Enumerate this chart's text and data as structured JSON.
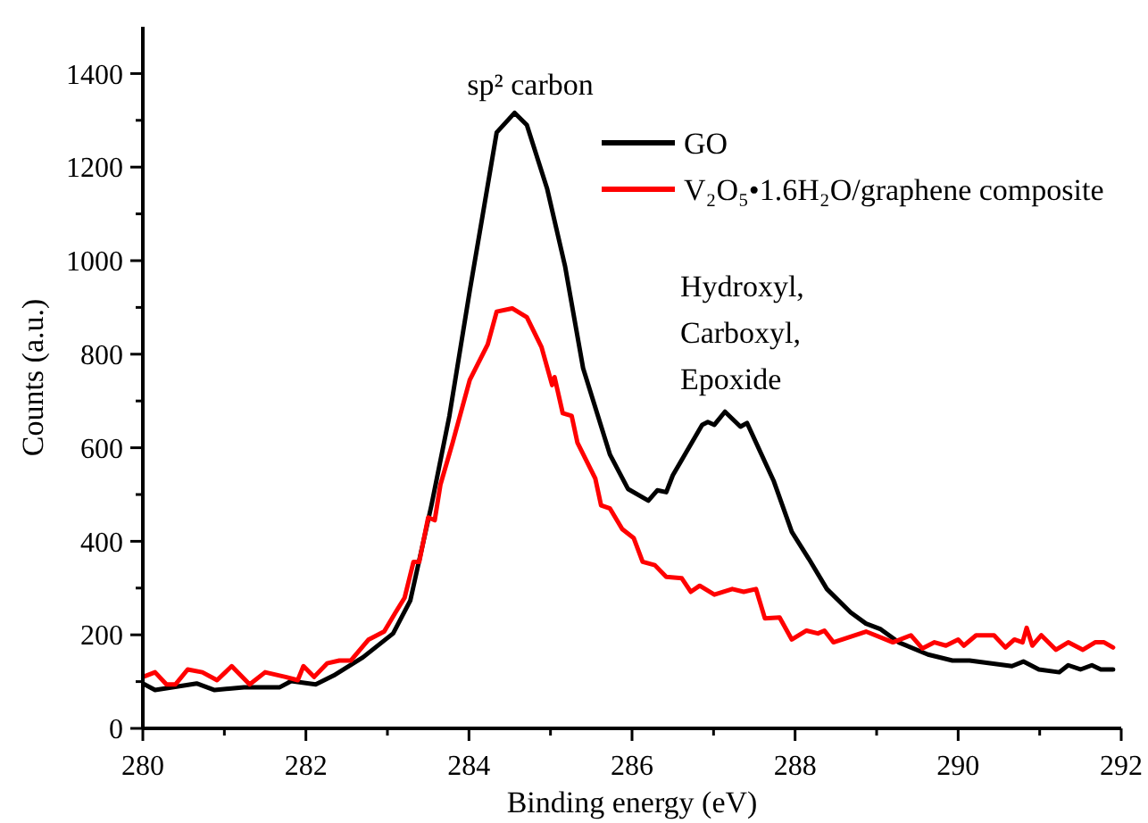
{
  "chart_data": {
    "type": "line",
    "xlabel": "Binding energy (eV)",
    "ylabel": "Counts (a.u.)",
    "xlim": [
      280,
      292
    ],
    "xticks": [
      280,
      {
        "value": 281,
        "label": null
      },
      282,
      {
        "value": 283,
        "label": null
      },
      284,
      {
        "value": 285,
        "label": null
      },
      286,
      {
        "value": 287,
        "label": null
      },
      288,
      {
        "value": 289,
        "label": null
      },
      290,
      {
        "value": 291,
        "label": null
      },
      292
    ],
    "ylim": [
      0,
      1500
    ],
    "yticks": [
      0,
      {
        "value": 100,
        "label": null
      },
      200,
      {
        "value": 300,
        "label": null
      },
      400,
      {
        "value": 500,
        "label": null
      },
      600,
      {
        "value": 700,
        "label": null
      },
      800,
      {
        "value": 900,
        "label": null
      },
      1000,
      {
        "value": 1100,
        "label": null
      },
      1200,
      {
        "value": 1300,
        "label": null
      },
      1400
    ],
    "grid": false,
    "legend": "top right",
    "marker": "none",
    "line_style": "solid",
    "annotations": [
      "sp² carbon",
      "Hydroxyl,\nCarboxyl,\nEpoxide"
    ],
    "series": [
      {
        "name": "GO",
        "color": "#000000",
        "x": [
          280,
          280.15,
          280.66,
          280.88,
          281.24,
          281.68,
          281.82,
          282.12,
          282.34,
          282.7,
          283.07,
          283.28,
          283.54,
          283.76,
          284.01,
          284.16,
          284.34,
          284.56,
          284.71,
          284.96,
          285.18,
          285.4,
          285.73,
          285.95,
          286.2,
          286.31,
          286.42,
          286.5,
          286.86,
          286.93,
          287.01,
          287.14,
          287.33,
          287.41,
          287.74,
          287.96,
          288.17,
          288.39,
          288.68,
          288.87,
          289.05,
          289.27,
          289.63,
          289.93,
          290.14,
          290.66,
          290.8,
          290.99,
          291.24,
          291.35,
          291.5,
          291.64,
          291.75,
          291.9
        ],
        "values": [
          96,
          82,
          96,
          82,
          88,
          88,
          101,
          94,
          113,
          152,
          203,
          273,
          477,
          668,
          936,
          1089,
          1274,
          1316,
          1290,
          1153,
          987,
          770,
          585,
          512,
          487,
          509,
          505,
          541,
          649,
          655,
          649,
          677,
          645,
          653,
          528,
          420,
          362,
          298,
          248,
          224,
          212,
          184,
          158,
          145,
          145,
          133,
          143,
          126,
          120,
          135,
          126,
          135,
          126,
          126
        ]
      },
      {
        "name": "V₂O₅•1.6H₂O/graphene composite",
        "color": "#ff0000",
        "x": [
          280,
          280.15,
          280.29,
          280.4,
          280.55,
          280.73,
          280.91,
          281.09,
          281.31,
          281.5,
          281.75,
          281.9,
          281.97,
          282.1,
          282.26,
          282.41,
          282.55,
          282.77,
          282.96,
          283.1,
          283.21,
          283.32,
          283.39,
          283.5,
          283.58,
          283.65,
          283.8,
          284.01,
          284.23,
          284.34,
          284.53,
          284.71,
          284.89,
          285.02,
          285.05,
          285.15,
          285.26,
          285.33,
          285.55,
          285.62,
          285.73,
          285.88,
          286.02,
          286.13,
          286.28,
          286.42,
          286.61,
          286.72,
          286.83,
          287.01,
          287.23,
          287.37,
          287.52,
          287.63,
          287.81,
          287.96,
          288.14,
          288.28,
          288.36,
          288.47,
          288.87,
          289.2,
          289.42,
          289.56,
          289.71,
          289.85,
          290,
          290.07,
          290.22,
          290.44,
          290.58,
          290.69,
          290.79,
          290.84,
          290.91,
          291.02,
          291.2,
          291.35,
          291.53,
          291.68,
          291.79,
          291.9
        ],
        "values": [
          110,
          120,
          94,
          94,
          126,
          120,
          103,
          133,
          94,
          120,
          110,
          103,
          133,
          110,
          139,
          145,
          145,
          190,
          207,
          248,
          279,
          356,
          356,
          451,
          445,
          521,
          611,
          745,
          821,
          891,
          898,
          879,
          815,
          734,
          751,
          674,
          668,
          611,
          534,
          477,
          470,
          426,
          407,
          356,
          349,
          324,
          321,
          292,
          305,
          286,
          298,
          292,
          298,
          235,
          237,
          190,
          209,
          203,
          209,
          184,
          207,
          184,
          199,
          171,
          184,
          177,
          190,
          177,
          199,
          199,
          173,
          190,
          184,
          215,
          177,
          199,
          168,
          184,
          168,
          184,
          184,
          173
        ]
      }
    ]
  }
}
